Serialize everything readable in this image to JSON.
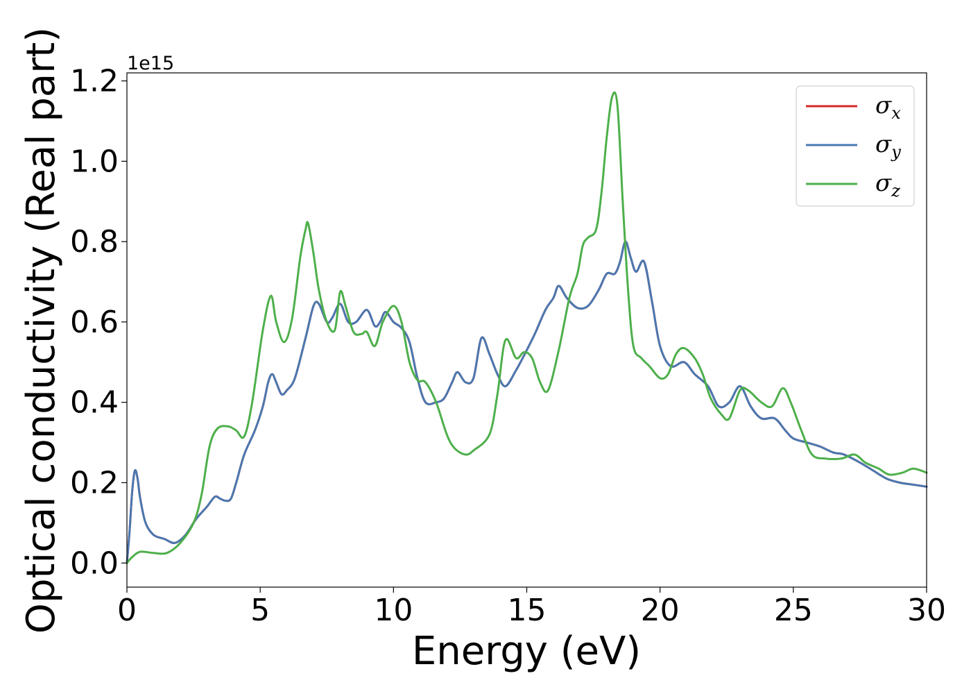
{
  "chart_data": {
    "type": "line",
    "title": "",
    "xlabel": "Energy (eV)",
    "ylabel": "Optical conductivity (Real part)",
    "y_offset_label": "1e15",
    "xlim": [
      0,
      30
    ],
    "ylim": [
      -0.06,
      1.22
    ],
    "x_ticks": [
      0,
      5,
      10,
      15,
      20,
      25,
      30
    ],
    "x_tick_labels": [
      "0",
      "5",
      "10",
      "15",
      "20",
      "25",
      "30"
    ],
    "y_ticks": [
      0.0,
      0.2,
      0.4,
      0.6,
      0.8,
      1.0,
      1.2
    ],
    "y_tick_labels": [
      "0.0",
      "0.2",
      "0.4",
      "0.6",
      "0.8",
      "1.0",
      "1.2"
    ],
    "grid": false,
    "legend_placement": "top-right",
    "legend": [
      {
        "symbol": "σ",
        "subscript": "x",
        "color": "#d62728"
      },
      {
        "symbol": "σ",
        "subscript": "y",
        "color": "#4a78b0"
      },
      {
        "symbol": "σ",
        "subscript": "z",
        "color": "#4daf4a"
      }
    ],
    "series": [
      {
        "name": "σx",
        "color": "#d62728",
        "points": [
          [
            0,
            0
          ],
          [
            0.1,
            0.08
          ],
          [
            0.2,
            0.18
          ],
          [
            0.3,
            0.23
          ],
          [
            0.4,
            0.21
          ],
          [
            0.5,
            0.16
          ],
          [
            0.7,
            0.1
          ],
          [
            1.0,
            0.07
          ],
          [
            1.4,
            0.06
          ],
          [
            1.8,
            0.05
          ],
          [
            2.2,
            0.07
          ],
          [
            2.6,
            0.11
          ],
          [
            3.0,
            0.14
          ],
          [
            3.3,
            0.165
          ],
          [
            3.5,
            0.16
          ],
          [
            3.7,
            0.155
          ],
          [
            3.9,
            0.16
          ],
          [
            4.1,
            0.2
          ],
          [
            4.4,
            0.27
          ],
          [
            4.8,
            0.33
          ],
          [
            5.1,
            0.39
          ],
          [
            5.3,
            0.45
          ],
          [
            5.45,
            0.47
          ],
          [
            5.6,
            0.45
          ],
          [
            5.8,
            0.42
          ],
          [
            6.0,
            0.43
          ],
          [
            6.3,
            0.46
          ],
          [
            6.7,
            0.56
          ],
          [
            7.0,
            0.64
          ],
          [
            7.2,
            0.645
          ],
          [
            7.5,
            0.6
          ],
          [
            7.7,
            0.61
          ],
          [
            8.0,
            0.645
          ],
          [
            8.3,
            0.6
          ],
          [
            8.6,
            0.6
          ],
          [
            9.0,
            0.63
          ],
          [
            9.3,
            0.59
          ],
          [
            9.5,
            0.6
          ],
          [
            9.7,
            0.625
          ],
          [
            10.0,
            0.6
          ],
          [
            10.3,
            0.585
          ],
          [
            10.6,
            0.55
          ],
          [
            10.9,
            0.46
          ],
          [
            11.2,
            0.4
          ],
          [
            11.6,
            0.4
          ],
          [
            11.9,
            0.41
          ],
          [
            12.2,
            0.45
          ],
          [
            12.4,
            0.475
          ],
          [
            12.7,
            0.45
          ],
          [
            13.0,
            0.46
          ],
          [
            13.3,
            0.56
          ],
          [
            13.6,
            0.52
          ],
          [
            13.9,
            0.47
          ],
          [
            14.2,
            0.44
          ],
          [
            14.6,
            0.48
          ],
          [
            15.0,
            0.53
          ],
          [
            15.3,
            0.57
          ],
          [
            15.7,
            0.63
          ],
          [
            16.0,
            0.66
          ],
          [
            16.2,
            0.69
          ],
          [
            16.5,
            0.66
          ],
          [
            16.9,
            0.635
          ],
          [
            17.3,
            0.64
          ],
          [
            17.7,
            0.68
          ],
          [
            18.0,
            0.72
          ],
          [
            18.3,
            0.72
          ],
          [
            18.5,
            0.75
          ],
          [
            18.7,
            0.8
          ],
          [
            18.9,
            0.76
          ],
          [
            19.1,
            0.725
          ],
          [
            19.4,
            0.75
          ],
          [
            19.7,
            0.65
          ],
          [
            20.0,
            0.54
          ],
          [
            20.4,
            0.49
          ],
          [
            20.9,
            0.5
          ],
          [
            21.3,
            0.47
          ],
          [
            21.8,
            0.44
          ],
          [
            22.2,
            0.39
          ],
          [
            22.6,
            0.4
          ],
          [
            23.0,
            0.44
          ],
          [
            23.4,
            0.39
          ],
          [
            23.8,
            0.36
          ],
          [
            24.3,
            0.36
          ],
          [
            24.7,
            0.33
          ],
          [
            25.0,
            0.31
          ],
          [
            25.5,
            0.3
          ],
          [
            26.0,
            0.29
          ],
          [
            26.5,
            0.275
          ],
          [
            26.9,
            0.27
          ],
          [
            27.5,
            0.25
          ],
          [
            28.0,
            0.23
          ],
          [
            28.5,
            0.21
          ],
          [
            29.0,
            0.2
          ],
          [
            29.5,
            0.195
          ],
          [
            30.0,
            0.19
          ]
        ]
      },
      {
        "name": "σy",
        "color": "#4a78b0",
        "points": [
          [
            0,
            0
          ],
          [
            0.1,
            0.08
          ],
          [
            0.2,
            0.18
          ],
          [
            0.3,
            0.23
          ],
          [
            0.4,
            0.21
          ],
          [
            0.5,
            0.16
          ],
          [
            0.7,
            0.1
          ],
          [
            1.0,
            0.07
          ],
          [
            1.4,
            0.06
          ],
          [
            1.8,
            0.05
          ],
          [
            2.2,
            0.07
          ],
          [
            2.6,
            0.11
          ],
          [
            3.0,
            0.14
          ],
          [
            3.3,
            0.165
          ],
          [
            3.5,
            0.16
          ],
          [
            3.7,
            0.155
          ],
          [
            3.9,
            0.16
          ],
          [
            4.1,
            0.2
          ],
          [
            4.4,
            0.27
          ],
          [
            4.8,
            0.33
          ],
          [
            5.1,
            0.39
          ],
          [
            5.3,
            0.45
          ],
          [
            5.45,
            0.47
          ],
          [
            5.6,
            0.45
          ],
          [
            5.8,
            0.42
          ],
          [
            6.0,
            0.43
          ],
          [
            6.3,
            0.46
          ],
          [
            6.7,
            0.56
          ],
          [
            7.0,
            0.64
          ],
          [
            7.2,
            0.645
          ],
          [
            7.5,
            0.6
          ],
          [
            7.7,
            0.61
          ],
          [
            8.0,
            0.645
          ],
          [
            8.3,
            0.6
          ],
          [
            8.6,
            0.6
          ],
          [
            9.0,
            0.63
          ],
          [
            9.3,
            0.59
          ],
          [
            9.5,
            0.6
          ],
          [
            9.7,
            0.625
          ],
          [
            10.0,
            0.6
          ],
          [
            10.3,
            0.585
          ],
          [
            10.6,
            0.55
          ],
          [
            10.9,
            0.46
          ],
          [
            11.2,
            0.4
          ],
          [
            11.6,
            0.4
          ],
          [
            11.9,
            0.41
          ],
          [
            12.2,
            0.45
          ],
          [
            12.4,
            0.475
          ],
          [
            12.7,
            0.45
          ],
          [
            13.0,
            0.46
          ],
          [
            13.3,
            0.56
          ],
          [
            13.6,
            0.52
          ],
          [
            13.9,
            0.47
          ],
          [
            14.2,
            0.44
          ],
          [
            14.6,
            0.48
          ],
          [
            15.0,
            0.53
          ],
          [
            15.3,
            0.57
          ],
          [
            15.7,
            0.63
          ],
          [
            16.0,
            0.66
          ],
          [
            16.2,
            0.69
          ],
          [
            16.5,
            0.66
          ],
          [
            16.9,
            0.635
          ],
          [
            17.3,
            0.64
          ],
          [
            17.7,
            0.68
          ],
          [
            18.0,
            0.72
          ],
          [
            18.3,
            0.72
          ],
          [
            18.5,
            0.75
          ],
          [
            18.7,
            0.8
          ],
          [
            18.9,
            0.76
          ],
          [
            19.1,
            0.725
          ],
          [
            19.4,
            0.75
          ],
          [
            19.7,
            0.65
          ],
          [
            20.0,
            0.54
          ],
          [
            20.4,
            0.49
          ],
          [
            20.9,
            0.5
          ],
          [
            21.3,
            0.47
          ],
          [
            21.8,
            0.44
          ],
          [
            22.2,
            0.39
          ],
          [
            22.6,
            0.4
          ],
          [
            23.0,
            0.44
          ],
          [
            23.4,
            0.39
          ],
          [
            23.8,
            0.36
          ],
          [
            24.3,
            0.36
          ],
          [
            24.7,
            0.33
          ],
          [
            25.0,
            0.31
          ],
          [
            25.5,
            0.3
          ],
          [
            26.0,
            0.29
          ],
          [
            26.5,
            0.275
          ],
          [
            26.9,
            0.27
          ],
          [
            27.5,
            0.25
          ],
          [
            28.0,
            0.23
          ],
          [
            28.5,
            0.21
          ],
          [
            29.0,
            0.2
          ],
          [
            29.5,
            0.195
          ],
          [
            30.0,
            0.19
          ]
        ]
      },
      {
        "name": "σz",
        "color": "#4daf4a",
        "points": [
          [
            0,
            0
          ],
          [
            0.2,
            0.015
          ],
          [
            0.5,
            0.028
          ],
          [
            1.0,
            0.025
          ],
          [
            1.5,
            0.025
          ],
          [
            2.0,
            0.05
          ],
          [
            2.5,
            0.1
          ],
          [
            2.8,
            0.17
          ],
          [
            3.1,
            0.29
          ],
          [
            3.4,
            0.335
          ],
          [
            3.8,
            0.34
          ],
          [
            4.1,
            0.33
          ],
          [
            4.4,
            0.315
          ],
          [
            4.7,
            0.4
          ],
          [
            5.1,
            0.58
          ],
          [
            5.4,
            0.665
          ],
          [
            5.6,
            0.6
          ],
          [
            5.9,
            0.55
          ],
          [
            6.2,
            0.61
          ],
          [
            6.5,
            0.76
          ],
          [
            6.7,
            0.83
          ],
          [
            6.8,
            0.845
          ],
          [
            7.0,
            0.77
          ],
          [
            7.2,
            0.68
          ],
          [
            7.5,
            0.6
          ],
          [
            7.8,
            0.58
          ],
          [
            8.0,
            0.675
          ],
          [
            8.2,
            0.64
          ],
          [
            8.5,
            0.575
          ],
          [
            8.8,
            0.57
          ],
          [
            9.0,
            0.575
          ],
          [
            9.3,
            0.54
          ],
          [
            9.6,
            0.6
          ],
          [
            10.0,
            0.64
          ],
          [
            10.3,
            0.6
          ],
          [
            10.6,
            0.5
          ],
          [
            10.9,
            0.455
          ],
          [
            11.2,
            0.45
          ],
          [
            11.6,
            0.4
          ],
          [
            12.0,
            0.32
          ],
          [
            12.3,
            0.285
          ],
          [
            12.7,
            0.27
          ],
          [
            13.0,
            0.28
          ],
          [
            13.6,
            0.32
          ],
          [
            13.9,
            0.42
          ],
          [
            14.2,
            0.555
          ],
          [
            14.6,
            0.51
          ],
          [
            14.9,
            0.525
          ],
          [
            15.2,
            0.51
          ],
          [
            15.5,
            0.45
          ],
          [
            15.8,
            0.43
          ],
          [
            16.2,
            0.53
          ],
          [
            16.6,
            0.66
          ],
          [
            16.9,
            0.72
          ],
          [
            17.1,
            0.79
          ],
          [
            17.3,
            0.81
          ],
          [
            17.6,
            0.83
          ],
          [
            17.8,
            0.92
          ],
          [
            18.0,
            1.06
          ],
          [
            18.2,
            1.16
          ],
          [
            18.4,
            1.14
          ],
          [
            18.6,
            0.9
          ],
          [
            18.8,
            0.68
          ],
          [
            19.0,
            0.54
          ],
          [
            19.3,
            0.51
          ],
          [
            19.6,
            0.49
          ],
          [
            20.0,
            0.46
          ],
          [
            20.3,
            0.47
          ],
          [
            20.6,
            0.52
          ],
          [
            20.9,
            0.535
          ],
          [
            21.3,
            0.51
          ],
          [
            21.6,
            0.47
          ],
          [
            21.9,
            0.41
          ],
          [
            22.3,
            0.37
          ],
          [
            22.6,
            0.36
          ],
          [
            23.0,
            0.43
          ],
          [
            23.3,
            0.43
          ],
          [
            23.8,
            0.4
          ],
          [
            24.2,
            0.39
          ],
          [
            24.6,
            0.435
          ],
          [
            24.9,
            0.4
          ],
          [
            25.3,
            0.33
          ],
          [
            25.7,
            0.27
          ],
          [
            26.2,
            0.26
          ],
          [
            26.8,
            0.26
          ],
          [
            27.3,
            0.27
          ],
          [
            27.7,
            0.25
          ],
          [
            28.2,
            0.235
          ],
          [
            28.6,
            0.22
          ],
          [
            29.1,
            0.225
          ],
          [
            29.5,
            0.235
          ],
          [
            30.0,
            0.225
          ]
        ]
      }
    ]
  }
}
